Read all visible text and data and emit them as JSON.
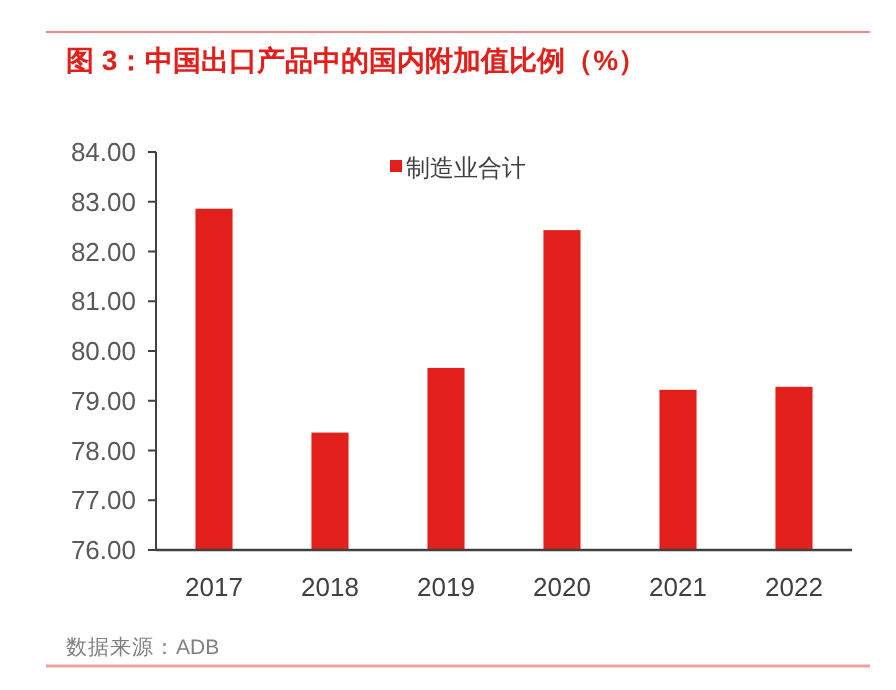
{
  "chart_data": {
    "type": "bar",
    "title": "图 3：中国出口产品中的国内附加值比例（%）",
    "categories": [
      "2017",
      "2018",
      "2019",
      "2020",
      "2021",
      "2022"
    ],
    "series": [
      {
        "name": "制造业合计",
        "color": "#e2201b",
        "values": [
          82.86,
          78.36,
          79.66,
          82.43,
          79.22,
          79.28
        ]
      }
    ],
    "ylim": [
      76,
      84
    ],
    "yticks": [
      {
        "value": 76,
        "label": "76.00"
      },
      {
        "value": 77,
        "label": "77.00"
      },
      {
        "value": 78,
        "label": "78.00"
      },
      {
        "value": 79,
        "label": "79.00"
      },
      {
        "value": 80,
        "label": "80.00"
      },
      {
        "value": 81,
        "label": "81.00"
      },
      {
        "value": 82,
        "label": "82.00"
      },
      {
        "value": 83,
        "label": "83.00"
      },
      {
        "value": 84,
        "label": "84.00"
      }
    ],
    "grid": false,
    "legend": "top",
    "annotations": [
      "数据来源：ADB"
    ]
  }
}
